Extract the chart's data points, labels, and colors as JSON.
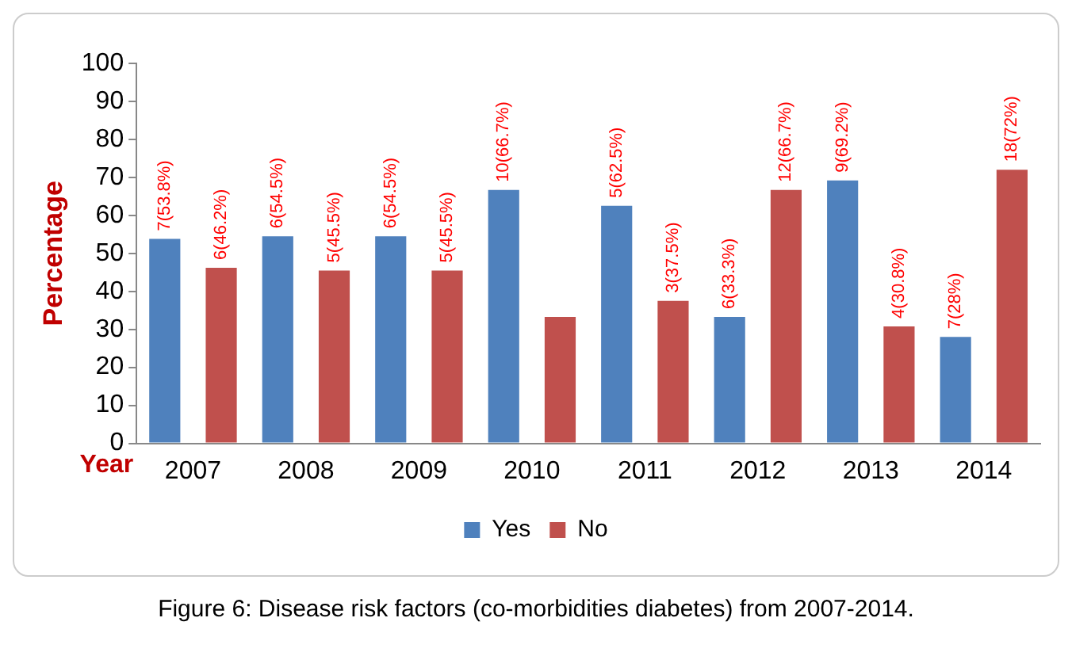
{
  "chart_data": {
    "type": "bar",
    "ylabel": "Percentage",
    "categories": [
      "2007",
      "2008",
      "2009",
      "2010",
      "2011",
      "2012",
      "2013",
      "2014"
    ],
    "series": [
      {
        "name": "Yes",
        "color": "#4f81bd",
        "values": [
          53.8,
          54.5,
          54.5,
          66.7,
          62.5,
          33.3,
          69.2,
          28
        ],
        "value_labels": [
          "7(53.8%)",
          "6(54.5%)",
          "6(54.5%)",
          "10(66.7%)",
          "5(62.5%)",
          "6(33.3%)",
          "9(69.2%)",
          "7(28%)"
        ]
      },
      {
        "name": "No",
        "color": "#c0504d",
        "values": [
          46.2,
          45.5,
          45.5,
          33.3,
          37.5,
          66.7,
          30.8,
          72
        ],
        "value_labels": [
          "6(46.2%)",
          "5(45.5%)",
          "5(45.5%)",
          null,
          "3(37.5%)",
          "12(66.7%)",
          "4(30.8%)",
          "18(72%)"
        ]
      }
    ],
    "ylim": [
      0,
      100
    ],
    "yticks": [
      0,
      10,
      20,
      30,
      40,
      50,
      60,
      70,
      80,
      90,
      100
    ],
    "grid": false,
    "legend": "bottom",
    "annotations": [
      "Year",
      "Figure 6: Disease risk factors (co-morbidities diabetes) from 2007-2014."
    ]
  }
}
